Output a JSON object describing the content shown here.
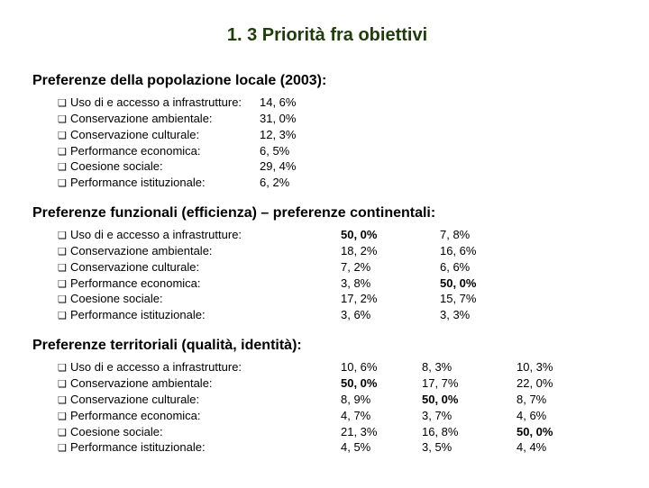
{
  "title": "1. 3 Priorità fra obiettivi",
  "colors": {
    "title": "#1f3d0a",
    "text": "#000000",
    "background": "#ffffff"
  },
  "sections": {
    "s1": {
      "heading": "Preferenze della popolazione locale (2003):",
      "items": [
        {
          "label": "Uso di e accesso a infrastrutture:",
          "v1": "14, 6%"
        },
        {
          "label": "Conservazione ambientale:",
          "v1": "31, 0%"
        },
        {
          "label": "Conservazione culturale:",
          "v1": "12, 3%"
        },
        {
          "label": "Performance economica:",
          "v1": "6, 5%"
        },
        {
          "label": "Coesione sociale:",
          "v1": "29, 4%"
        },
        {
          "label": "Performance istituzionale:",
          "v1": "6, 2%"
        }
      ]
    },
    "s2": {
      "heading": "Preferenze funzionali (efficienza) – preferenze continentali:",
      "bold_index": [
        0,
        3
      ],
      "items": [
        {
          "label": "Uso di e accesso a infrastrutture:",
          "v1": "50, 0%",
          "v2": "7, 8%"
        },
        {
          "label": "Conservazione ambientale:",
          "v1": "18, 2%",
          "v2": "16, 6%"
        },
        {
          "label": "Conservazione culturale:",
          "v1": "7, 2%",
          "v2": "6, 6%"
        },
        {
          "label": "Performance economica:",
          "v1": "3, 8%",
          "v2": "50, 0%"
        },
        {
          "label": "Coesione sociale:",
          "v1": "17, 2%",
          "v2": "15, 7%"
        },
        {
          "label": "Performance istituzionale:",
          "v1": "3, 6%",
          "v2": "3, 3%"
        }
      ]
    },
    "s3": {
      "heading": "Preferenze territoriali (qualità, identità):",
      "bold_index": {
        "c1": 1,
        "c2": 2,
        "c3": 4
      },
      "items": [
        {
          "label": "Uso di e accesso a infrastrutture:",
          "v1": "10, 6%",
          "v2": "8, 3%",
          "v3": "10, 3%"
        },
        {
          "label": "Conservazione ambientale:",
          "v1": "50, 0%",
          "v2": "17, 7%",
          "v3": "22, 0%"
        },
        {
          "label": "Conservazione culturale:",
          "v1": "8, 9%",
          "v2": "50, 0%",
          "v3": "8, 7%"
        },
        {
          "label": "Performance economica:",
          "v1": "4, 7%",
          "v2": "3, 7%",
          "v3": "4, 6%"
        },
        {
          "label": "Coesione sociale:",
          "v1": "21, 3%",
          "v2": "16, 8%",
          "v3": "50, 0%"
        },
        {
          "label": "Performance istituzionale:",
          "v1": "4, 5%",
          "v2": "3, 5%",
          "v3": "4, 4%"
        }
      ]
    }
  },
  "bullet_glyph": "❑"
}
